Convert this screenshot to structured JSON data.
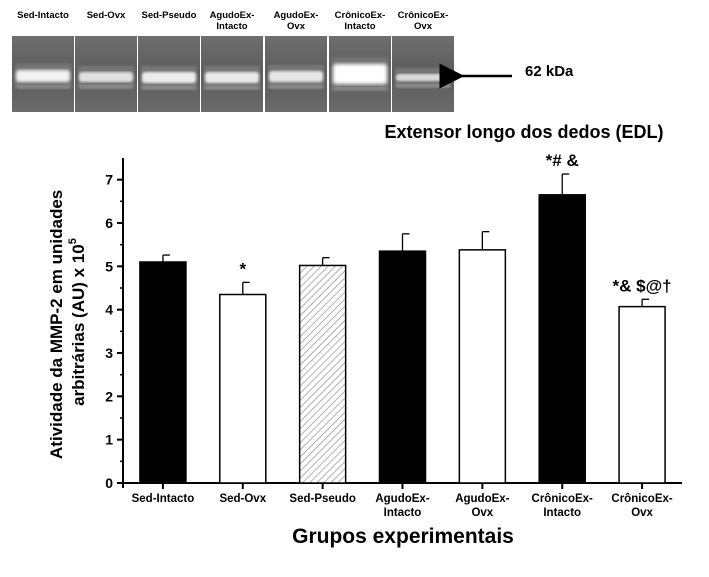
{
  "gel": {
    "lanes": [
      {
        "label": "Sed-Intacto"
      },
      {
        "label": "Sed-Ovx"
      },
      {
        "label": "Sed-Pseudo"
      },
      {
        "label": "AgudoEx-\nIntacto"
      },
      {
        "label": "AgudoEx-\nOvx"
      },
      {
        "label": "CrônicoEx-\nIntacto"
      },
      {
        "label": "CrônicoEx-\nOvx"
      }
    ],
    "band_label": "62 kDa"
  },
  "chart_data": {
    "type": "bar",
    "title": "Extensor longo dos dedos (EDL)",
    "xlabel": "Grupos experimentais",
    "ylabel_line1": "Atividade da MMP-2 em unidades",
    "ylabel_line2": "arbitrárias (AU) x 10",
    "ylabel_sup": "5",
    "ylim": [
      0,
      7.5
    ],
    "yticks": [
      0,
      1,
      2,
      3,
      4,
      5,
      6,
      7
    ],
    "categories": [
      "Sed-Intacto",
      "Sed-Ovx",
      "Sed-Pseudo",
      "AgudoEx-\nIntacto",
      "AgudoEx-\nOvx",
      "CrônicoEx-\nIntacto",
      "CrônicoEx-\nOvx"
    ],
    "values": [
      5.1,
      4.35,
      5.02,
      5.35,
      5.38,
      6.65,
      4.07
    ],
    "errors": [
      0.16,
      0.28,
      0.18,
      0.4,
      0.42,
      0.48,
      0.17
    ],
    "fills": [
      "black",
      "white",
      "hatched",
      "black",
      "white",
      "black",
      "white"
    ],
    "annotations": [
      "",
      "*",
      "",
      "",
      "",
      "*# &",
      "*& $@†"
    ],
    "grid": false
  },
  "colors": {
    "bar_dark": "#000000",
    "bar_light": "#ffffff",
    "hatch": "#888888"
  }
}
